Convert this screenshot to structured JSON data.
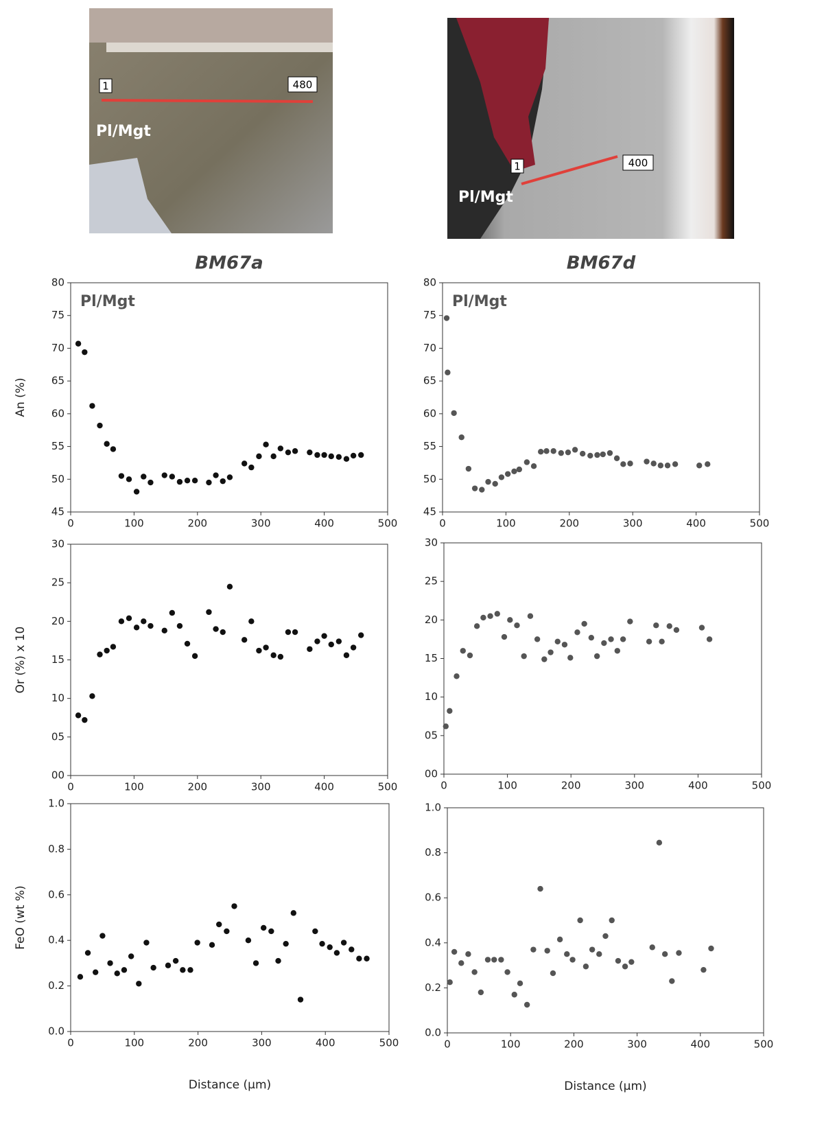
{
  "photos": [
    {
      "start": "1",
      "end": "480",
      "phase": "Pl/Mgt"
    },
    {
      "start": "1",
      "end": "400",
      "phase": "Pl/Mgt"
    }
  ],
  "chart_data": [
    {
      "type": "scatter",
      "title": "BM67a",
      "annotation": "Pl/Mgt",
      "ylabel": "An (%)",
      "x": [
        12,
        22,
        34,
        46,
        57,
        67,
        80,
        92,
        104,
        115,
        126,
        148,
        160,
        172,
        184,
        196,
        218,
        229,
        240,
        251,
        274,
        285,
        297,
        308,
        320,
        331,
        343,
        354,
        377,
        389,
        400,
        411,
        423,
        435,
        446,
        458
      ],
      "series": [
        {
          "color": "#111111",
          "values": [
            70.7,
            69.4,
            61.2,
            58.2,
            55.4,
            54.6,
            50.5,
            50,
            48.1,
            50.4,
            49.5,
            50.6,
            50.4,
            49.6,
            49.8,
            49.8,
            49.5,
            50.6,
            49.7,
            50.3,
            52.4,
            51.8,
            53.5,
            55.3,
            53.5,
            54.7,
            54.1,
            54.3,
            54.1,
            53.7,
            53.7,
            53.5,
            53.4,
            53.1,
            53.6,
            53.7
          ]
        }
      ],
      "xlim": [
        0,
        500
      ],
      "xticks": [
        0,
        100,
        200,
        300,
        400,
        500
      ],
      "ylim": [
        45,
        80
      ],
      "yticks": [
        45,
        50,
        55,
        60,
        65,
        70,
        75,
        80
      ]
    },
    {
      "type": "scatter",
      "title": "BM67d",
      "annotation": "Pl/Mgt",
      "x": [
        6.5,
        8,
        18,
        30,
        41,
        51,
        62,
        72,
        83,
        93,
        103,
        113,
        121,
        133,
        144,
        155,
        164,
        175,
        187,
        198,
        209,
        221,
        233,
        244,
        253,
        264,
        275,
        285,
        296,
        322,
        333,
        344,
        355,
        367,
        405,
        418
      ],
      "series": [
        {
          "color": "#555555",
          "values": [
            74.6,
            66.3,
            60.1,
            56.4,
            51.6,
            48.6,
            48.4,
            49.6,
            49.3,
            50.3,
            50.8,
            51.2,
            51.5,
            52.6,
            52,
            54.2,
            54.3,
            54.3,
            54,
            54.1,
            54.5,
            53.9,
            53.6,
            53.7,
            53.8,
            54,
            53.2,
            52.3,
            52.4,
            52.7,
            52.4,
            52.1,
            52.1,
            52.3,
            52.1,
            52.3
          ]
        }
      ],
      "xlim": [
        0,
        500
      ],
      "xticks": [
        0,
        100,
        200,
        300,
        400,
        500
      ],
      "ylim": [
        45,
        80
      ],
      "yticks": [
        45,
        50,
        55,
        60,
        65,
        70,
        75,
        80
      ]
    },
    {
      "type": "scatter",
      "ylabel": "Or (%) x 10",
      "x": [
        12,
        22,
        34,
        46,
        57,
        67,
        80,
        92,
        104,
        115,
        126,
        148,
        160,
        172,
        184,
        196,
        218,
        229,
        240,
        251,
        274,
        285,
        297,
        308,
        320,
        331,
        343,
        354,
        377,
        389,
        400,
        411,
        423,
        435,
        446,
        458
      ],
      "series": [
        {
          "color": "#111111",
          "values": [
            7.8,
            7.2,
            10.3,
            15.7,
            16.2,
            16.7,
            20,
            20.4,
            19.2,
            20,
            19.4,
            18.8,
            21.1,
            19.4,
            17.1,
            15.5,
            21.2,
            19,
            18.6,
            24.5,
            17.6,
            20,
            16.2,
            16.6,
            15.6,
            15.4,
            18.6,
            18.6,
            16.4,
            17.4,
            18.1,
            17,
            17.4,
            15.6,
            16.6,
            18.2
          ]
        }
      ],
      "xlim": [
        0,
        500
      ],
      "xticks": [
        0,
        100,
        200,
        300,
        400,
        500
      ],
      "ylim": [
        0,
        30
      ],
      "yticks": [
        {
          "value": 0,
          "label": "00"
        },
        {
          "value": 5,
          "label": "05"
        },
        10,
        15,
        20,
        25,
        30
      ]
    },
    {
      "type": "scatter",
      "x": [
        3,
        9,
        20,
        30,
        41,
        52,
        62,
        73,
        84,
        95,
        104,
        115,
        126,
        136,
        147,
        158,
        168,
        179,
        190,
        199,
        210,
        221,
        232,
        241,
        252,
        263,
        273,
        282,
        293,
        323,
        334,
        343,
        355,
        366,
        406,
        418
      ],
      "series": [
        {
          "color": "#555555",
          "values": [
            6.2,
            8.2,
            12.7,
            16,
            15.4,
            19.2,
            20.3,
            20.5,
            20.8,
            17.8,
            20,
            19.3,
            15.3,
            20.5,
            17.5,
            14.9,
            15.8,
            17.2,
            16.8,
            15.1,
            18.4,
            19.5,
            17.7,
            15.3,
            17,
            17.5,
            16,
            17.5,
            19.8,
            17.2,
            19.3,
            17.2,
            19.2,
            18.7,
            19,
            17.5
          ]
        }
      ],
      "xlim": [
        0,
        500
      ],
      "xticks": [
        0,
        100,
        200,
        300,
        400,
        500
      ],
      "ylim": [
        0,
        30
      ],
      "yticks": [
        {
          "value": 0,
          "label": "00"
        },
        {
          "value": 5,
          "label": "05"
        },
        10,
        15,
        20,
        25,
        30
      ]
    },
    {
      "type": "scatter",
      "ylabel": "FeO (wt %)",
      "xlabel": "Distance (µm)",
      "x": [
        15,
        27,
        39,
        50,
        62,
        73,
        84,
        95,
        107,
        119,
        130,
        153,
        165,
        176,
        188,
        199,
        222,
        233,
        245,
        257,
        279,
        291,
        303,
        315,
        326,
        338,
        350,
        361,
        384,
        395,
        407,
        418,
        429,
        441,
        453,
        465
      ],
      "series": [
        {
          "color": "#111111",
          "values": [
            0.24,
            0.345,
            0.26,
            0.42,
            0.3,
            0.255,
            0.27,
            0.33,
            0.21,
            0.39,
            0.28,
            0.29,
            0.31,
            0.27,
            0.27,
            0.39,
            0.38,
            0.47,
            0.44,
            0.55,
            0.4,
            0.3,
            0.455,
            0.44,
            0.31,
            0.385,
            0.52,
            0.14,
            0.44,
            0.385,
            0.37,
            0.345,
            0.39,
            0.36,
            0.32,
            0.32
          ]
        }
      ],
      "xlim": [
        0,
        500
      ],
      "xticks": [
        0,
        100,
        200,
        300,
        400,
        500
      ],
      "ylim": [
        0,
        1
      ],
      "yticks": [
        {
          "value": 0,
          "label": "0.0"
        },
        0.2,
        0.4,
        0.6,
        0.8,
        {
          "value": 1,
          "label": "1.0"
        }
      ]
    },
    {
      "type": "scatter",
      "xlabel": "Distance (µm)",
      "x": [
        4,
        11,
        22,
        33,
        43,
        53,
        64,
        74,
        85,
        95,
        106,
        115,
        126,
        136,
        147,
        158,
        167,
        178,
        189,
        198,
        210,
        219,
        229,
        240,
        250,
        260,
        270,
        281,
        291,
        324,
        335,
        344,
        355,
        366,
        405,
        417
      ],
      "series": [
        {
          "color": "#555555",
          "values": [
            0.225,
            0.36,
            0.31,
            0.35,
            0.27,
            0.18,
            0.325,
            0.325,
            0.325,
            0.27,
            0.17,
            0.22,
            0.125,
            0.37,
            0.64,
            0.365,
            0.265,
            0.415,
            0.35,
            0.325,
            0.5,
            0.295,
            0.37,
            0.35,
            0.43,
            0.5,
            0.32,
            0.295,
            0.315,
            0.38,
            0.845,
            0.35,
            0.23,
            0.355,
            0.28,
            0.375
          ]
        }
      ],
      "xlim": [
        0,
        500
      ],
      "xticks": [
        0,
        100,
        200,
        300,
        400,
        500
      ],
      "ylim": [
        0,
        1
      ],
      "yticks": [
        {
          "value": 0,
          "label": "0.0"
        },
        0.2,
        0.4,
        0.6,
        0.8,
        {
          "value": 1,
          "label": "1.0"
        }
      ]
    }
  ]
}
